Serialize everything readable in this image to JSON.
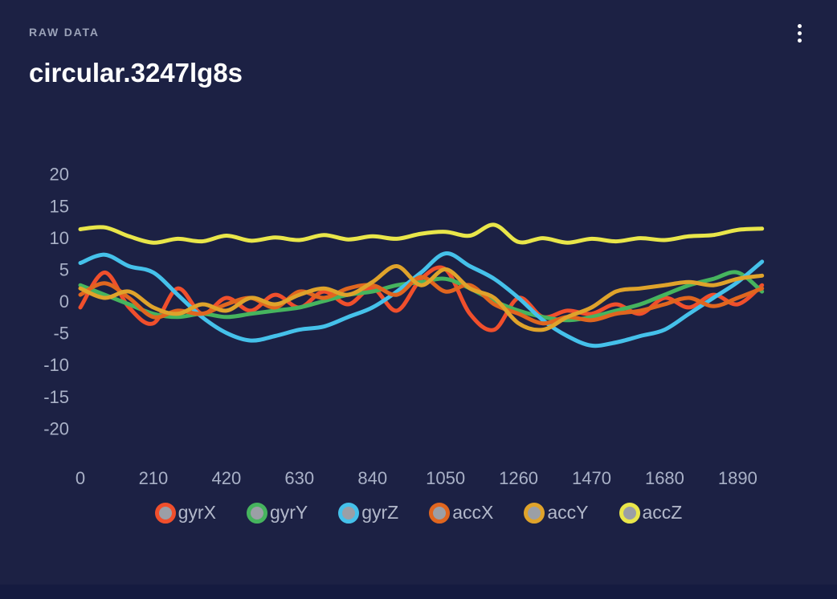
{
  "header": {
    "eyebrow": "RAW DATA",
    "title": "circular.3247lg8s"
  },
  "menu": {
    "icon": "kebab-menu-icon"
  },
  "chart_data": {
    "type": "line",
    "title": "",
    "xlabel": "",
    "ylabel": "",
    "grid": false,
    "legend_position": "bottom",
    "legend_marker_fill": "#9b9fa6",
    "axis_label_color": "#a9b1c7",
    "background_color": "#1c2144",
    "xlim": [
      0,
      2000
    ],
    "ylim": [
      -24,
      24
    ],
    "xticks": [
      0,
      210,
      420,
      630,
      840,
      1050,
      1260,
      1470,
      1680,
      1890
    ],
    "yticks": [
      20,
      15,
      10,
      5,
      0,
      -5,
      -10,
      -15,
      -20
    ],
    "x": [
      0,
      70,
      140,
      210,
      280,
      350,
      420,
      490,
      560,
      630,
      700,
      770,
      840,
      910,
      980,
      1050,
      1120,
      1190,
      1260,
      1330,
      1400,
      1470,
      1540,
      1610,
      1680,
      1750,
      1820,
      1890,
      1960
    ],
    "series": [
      {
        "name": "gyrX",
        "color": "#f04f2c",
        "values": [
          -1,
          4.5,
          -1,
          -3.5,
          2,
          -2,
          0.5,
          -1.5,
          1,
          -1,
          1.5,
          -0.5,
          2,
          -1.5,
          3.5,
          5,
          -2,
          -4.5,
          0.5,
          -2.5,
          -1.5,
          -2,
          -0.5,
          -2,
          0.5,
          -1,
          1,
          -0.5,
          2.5
        ]
      },
      {
        "name": "gyrY",
        "color": "#46b45e",
        "values": [
          2.5,
          1,
          -0.5,
          -2,
          -2.5,
          -2,
          -2.5,
          -2,
          -1.5,
          -1,
          0,
          1,
          1.5,
          2.5,
          3,
          3.5,
          2,
          0,
          -1.5,
          -2.5,
          -3,
          -2.5,
          -1.5,
          -0.5,
          1,
          2.5,
          3.5,
          4.5,
          1.5
        ]
      },
      {
        "name": "gyrZ",
        "color": "#45c1ea",
        "values": [
          6,
          7.3,
          5.5,
          4.5,
          1,
          -2.5,
          -5,
          -6.2,
          -5.5,
          -4.5,
          -4,
          -2.5,
          -1,
          1.5,
          4.5,
          7.5,
          5.5,
          3.5,
          0.5,
          -3,
          -5.5,
          -7,
          -6.5,
          -5.5,
          -4.5,
          -2,
          0.5,
          3,
          6.2
        ]
      },
      {
        "name": "accX",
        "color": "#e0661f",
        "values": [
          1,
          2.8,
          0.5,
          -2.5,
          -1.5,
          -2,
          -0.5,
          0.5,
          -1,
          1.5,
          0.5,
          2,
          2.5,
          1,
          3.8,
          1.5,
          2.5,
          -0.5,
          -2,
          -3.5,
          -2.5,
          -3,
          -2,
          -1.5,
          -0.5,
          0.5,
          -0.8,
          0.5,
          2
        ]
      },
      {
        "name": "accY",
        "color": "#dfa32b",
        "values": [
          2,
          0.5,
          1.5,
          -1,
          -2,
          -0.5,
          -1.5,
          0.5,
          -0.5,
          1,
          2,
          1,
          3,
          5.5,
          2.5,
          5,
          2,
          0.5,
          -3.5,
          -4.5,
          -2.5,
          -1,
          1.5,
          2,
          2.5,
          3,
          2.5,
          3.5,
          4
        ]
      },
      {
        "name": "accZ",
        "color": "#e9e64a",
        "values": [
          11.3,
          11.6,
          10.2,
          9.2,
          9.8,
          9.4,
          10.3,
          9.5,
          10,
          9.6,
          10.4,
          9.7,
          10.2,
          9.8,
          10.6,
          10.9,
          10.3,
          12,
          9.3,
          9.9,
          9.2,
          9.8,
          9.4,
          9.9,
          9.6,
          10.2,
          10.4,
          11.2,
          11.4
        ]
      }
    ]
  }
}
